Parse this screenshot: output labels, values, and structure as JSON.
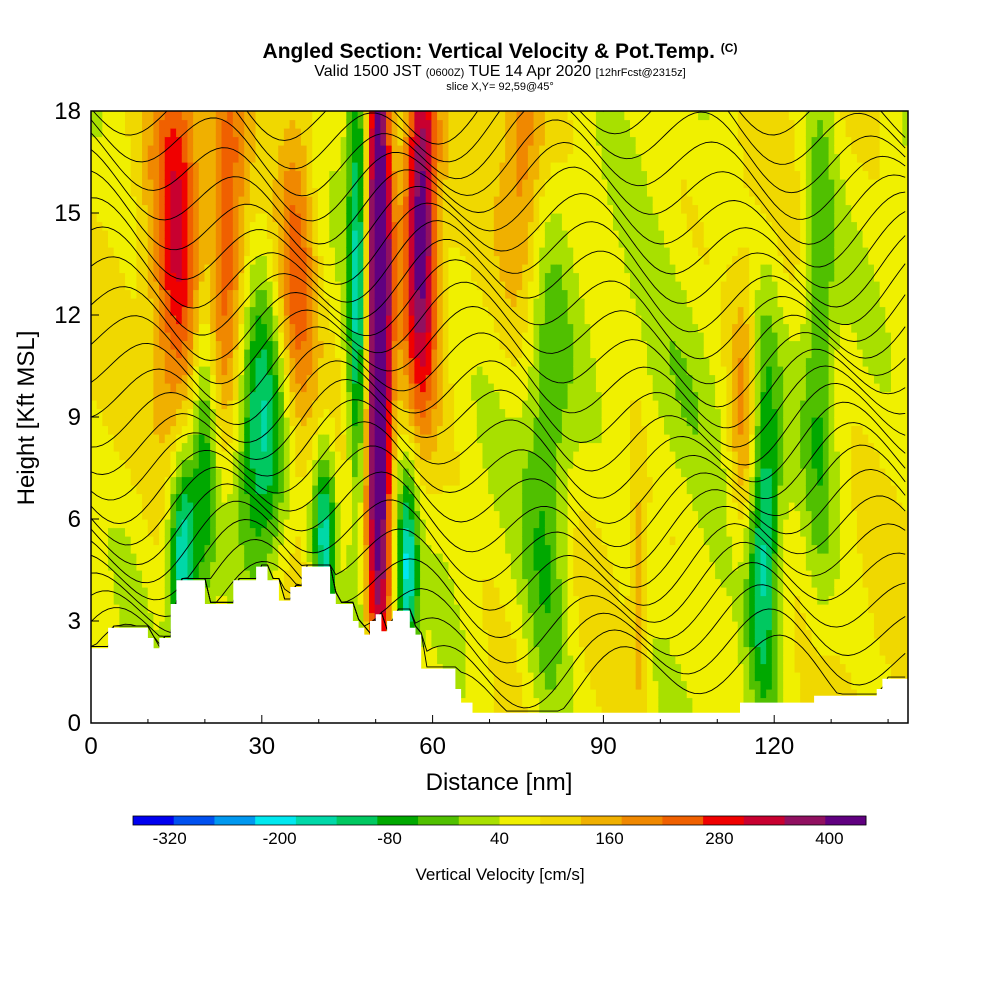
{
  "title": {
    "main": "Angled Section: Vertical Velocity & Pot.Temp.",
    "copyright": "(C)",
    "valid_prefix": "Valid 1500 JST",
    "valid_utc": "(0600Z)",
    "valid_date": "TUE 14 Apr 2020",
    "forecast": "[12hrFcst@2315z]",
    "slice": "slice X,Y= 92,59@45°"
  },
  "chart_data": {
    "type": "heatmap",
    "xlabel": "Distance [nm]",
    "ylabel": "Height [Kft MSL]",
    "xlim": [
      0,
      143.5
    ],
    "ylim": [
      0,
      18
    ],
    "x_ticks": [
      0,
      30,
      60,
      90,
      120
    ],
    "y_ticks": [
      0,
      3,
      6,
      9,
      12,
      15,
      18
    ],
    "colorbar": {
      "title": "Vertical Velocity [cm/s]",
      "min": -360,
      "max": 440,
      "step": 40,
      "labels": [
        -320,
        -200,
        -80,
        40,
        160,
        280,
        400
      ],
      "colors": [
        "#0000f0",
        "#0050f0",
        "#0098f0",
        "#00e8f0",
        "#00d8a8",
        "#00c860",
        "#00a800",
        "#50c000",
        "#a8e000",
        "#f0f000",
        "#f0d800",
        "#f0b000",
        "#f08800",
        "#f06000",
        "#f00000",
        "#c80030",
        "#901060",
        "#600080"
      ]
    },
    "terrain_kft": [
      [
        0,
        2.2
      ],
      [
        3,
        2.8
      ],
      [
        8,
        2.8
      ],
      [
        10,
        2.5
      ],
      [
        11,
        2.2
      ],
      [
        12,
        2.5
      ],
      [
        14,
        3.5
      ],
      [
        15,
        4.2
      ],
      [
        19,
        4.2
      ],
      [
        20,
        3.5
      ],
      [
        24,
        3.5
      ],
      [
        25,
        4.2
      ],
      [
        28,
        4.2
      ],
      [
        29,
        4.6
      ],
      [
        30,
        4.6
      ],
      [
        31,
        4.2
      ],
      [
        33,
        3.6
      ],
      [
        35,
        4.0
      ],
      [
        37,
        4.6
      ],
      [
        41,
        4.6
      ],
      [
        42,
        3.8
      ],
      [
        43,
        3.5
      ],
      [
        46,
        3.0
      ],
      [
        47,
        2.8
      ],
      [
        48,
        2.6
      ],
      [
        49,
        3.0
      ],
      [
        50,
        3.2
      ],
      [
        51,
        2.7
      ],
      [
        52,
        3.0
      ],
      [
        53,
        3.3
      ],
      [
        56,
        2.8
      ],
      [
        57,
        2.6
      ],
      [
        58,
        1.6
      ],
      [
        60,
        1.6
      ],
      [
        64,
        1.0
      ],
      [
        65,
        0.6
      ],
      [
        67,
        0.3
      ],
      [
        113,
        0.3
      ],
      [
        114,
        0.6
      ],
      [
        127,
        0.8
      ],
      [
        138,
        1.0
      ],
      [
        139,
        1.3
      ],
      [
        143.5,
        1.3
      ]
    ],
    "updrafts": [
      {
        "x": 15,
        "z": 14,
        "sx": 3.0,
        "sz": 5,
        "w": 190
      },
      {
        "x": 24,
        "z": 14,
        "sx": 2.5,
        "sz": 4,
        "w": 180
      },
      {
        "x": 36,
        "z": 13,
        "sx": 2.5,
        "sz": 4,
        "w": 170
      },
      {
        "x": 50.5,
        "z": 12,
        "sx": 1.6,
        "sz": 8,
        "w": 420
      },
      {
        "x": 58,
        "z": 15,
        "sx": 2.0,
        "sz": 4,
        "w": 320
      },
      {
        "x": 76,
        "z": 16,
        "sx": 2.8,
        "sz": 3,
        "w": 120
      },
      {
        "x": 115,
        "z": 9,
        "sx": 2.0,
        "sz": 3,
        "w": 140
      },
      {
        "x": 96,
        "z": 4,
        "sx": 1.0,
        "sz": 3,
        "w": 80
      }
    ],
    "downdrafts": [
      {
        "x": 16,
        "z": 5,
        "sx": 1.8,
        "sz": 2.0,
        "w": -250
      },
      {
        "x": 20,
        "z": 9,
        "sx": 1.5,
        "sz": 4,
        "w": -120
      },
      {
        "x": 30,
        "z": 8,
        "sx": 3.5,
        "sz": 3,
        "w": -200
      },
      {
        "x": 41,
        "z": 5.5,
        "sx": 1.5,
        "sz": 2,
        "w": -210
      },
      {
        "x": 47,
        "z": 13,
        "sx": 1.4,
        "sz": 6,
        "w": -220
      },
      {
        "x": 55.5,
        "z": 4.5,
        "sx": 1.4,
        "sz": 2,
        "w": -230
      },
      {
        "x": 80,
        "z": 6,
        "sx": 3.0,
        "sz": 6,
        "w": -110
      },
      {
        "x": 104,
        "z": 10,
        "sx": 8.0,
        "sz": 3,
        "w": -70
      },
      {
        "x": 118,
        "z": 6,
        "sx": 2.0,
        "sz": 4,
        "w": -200
      },
      {
        "x": 128,
        "z": 12,
        "sx": 2.0,
        "sz": 6,
        "w": -100
      }
    ],
    "isentrope_count": 26
  }
}
